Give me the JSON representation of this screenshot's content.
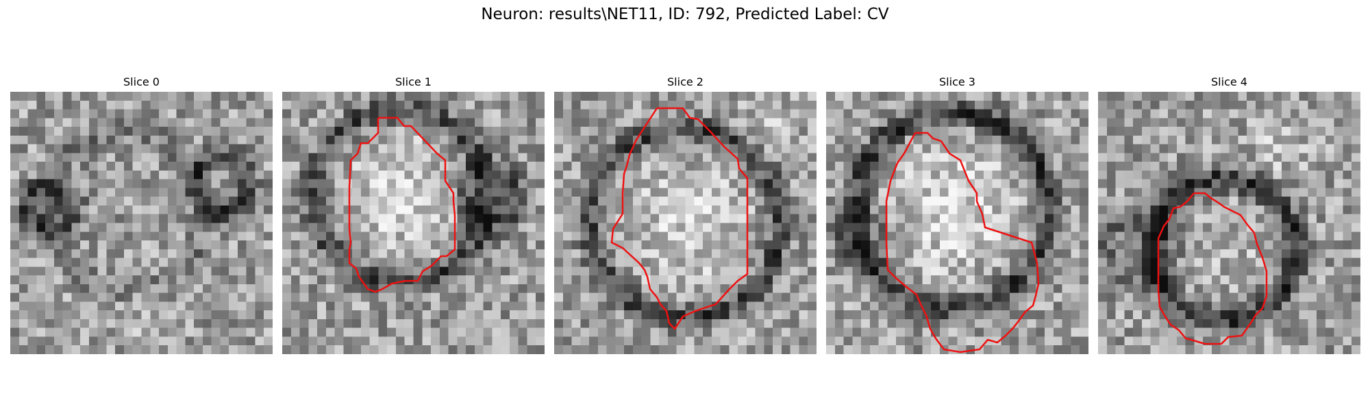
{
  "figure": {
    "title": "Neuron: results\\NET11, ID: 792, Predicted Label: CV"
  },
  "colors": {
    "background": "#ffffff",
    "contour": "#ee1111",
    "colormap": "gray"
  },
  "panels": [
    {
      "title": "Slice 0",
      "has_contour": false
    },
    {
      "title": "Slice 1",
      "has_contour": true
    },
    {
      "title": "Slice 2",
      "has_contour": true
    },
    {
      "title": "Slice 3",
      "has_contour": true
    },
    {
      "title": "Slice 4",
      "has_contour": true
    }
  ]
}
